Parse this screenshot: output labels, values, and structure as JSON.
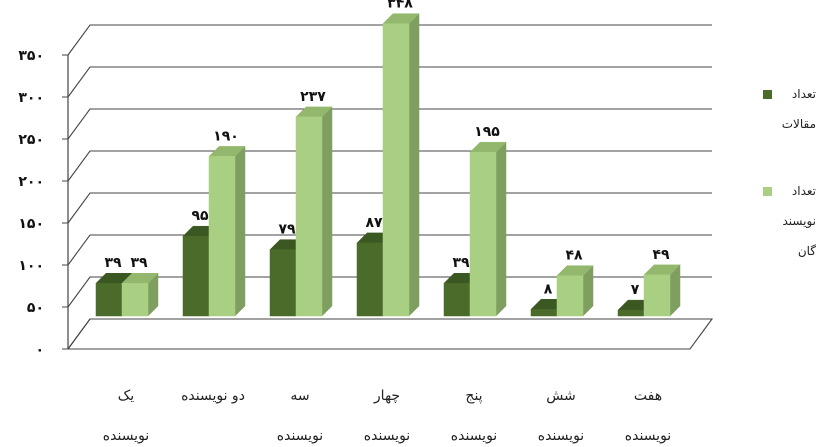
{
  "chart_data": {
    "type": "bar",
    "categories": [
      [
        "یک",
        "نویسنده"
      ],
      [
        "دو نویسنده"
      ],
      [
        "سه",
        "نویسنده"
      ],
      [
        "چهار",
        "نویسنده"
      ],
      [
        "پنج",
        "نویسنده"
      ],
      [
        "شش",
        "نویسنده"
      ],
      [
        "هفت",
        "نویسنده"
      ]
    ],
    "series": [
      {
        "name": [
          "تعداد",
          "مقالات"
        ],
        "values": [
          39,
          95,
          79,
          87,
          39,
          8,
          7
        ],
        "value_labels": [
          "۳۹",
          "۹۵",
          "۷۹",
          "۸۷",
          "۳۹",
          "۸",
          "۷"
        ],
        "color": "#4a6b2a"
      },
      {
        "name": [
          "تعداد",
          "نویسند",
          "گان"
        ],
        "values": [
          39,
          190,
          237,
          348,
          195,
          48,
          49
        ],
        "value_labels": [
          "۳۹",
          "۱۹۰",
          "۲۳۷",
          "۳۴۸",
          "۱۹۵",
          "۴۸",
          "۴۹"
        ],
        "color": "#a8cf82"
      }
    ],
    "yticks": [
      0,
      50,
      100,
      150,
      200,
      250,
      300,
      350
    ],
    "ytick_labels": [
      "۰",
      "۵۰",
      "۱۰۰",
      "۱۵۰",
      "۲۰۰",
      "۲۵۰",
      "۳۰۰",
      "۳۵۰"
    ],
    "ylim": [
      0,
      350
    ],
    "grid": true,
    "legend_position": "right",
    "title": "",
    "xlabel": "",
    "ylabel": ""
  }
}
